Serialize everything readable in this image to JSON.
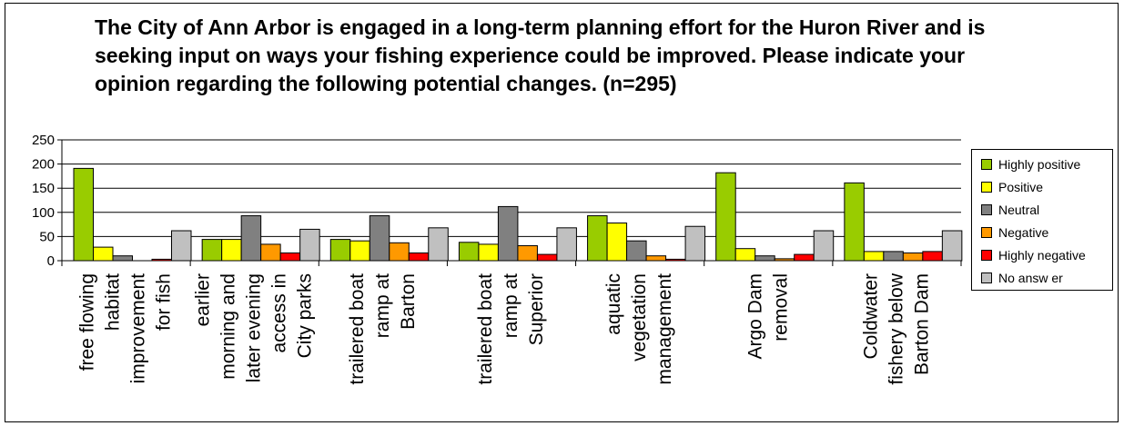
{
  "chart_data": {
    "type": "bar",
    "title": "The City of Ann Arbor is engaged in a long-term planning effort for the Huron River and is seeking input on ways your fishing experience could be improved. Please indicate your opinion regarding the following potential changes. (n=295)",
    "categories": [
      "free flowing habitat improvement for fish",
      "earlier morning and later evening access in City parks",
      "trailered boat ramp at Barton",
      "trailered boat ramp at Superior",
      "aquatic vegetation management",
      "Argo Dam removal",
      "Coldwater fishery below Barton Dam"
    ],
    "category_lines": [
      [
        "free flowing",
        "habitat",
        "improvement",
        "for fish"
      ],
      [
        "earlier",
        "morning and",
        "later evening",
        "access in",
        "City parks"
      ],
      [
        "trailered boat",
        "ramp at",
        "Barton"
      ],
      [
        "trailered boat",
        "ramp at",
        "Superior"
      ],
      [
        "aquatic",
        "vegetation",
        "management"
      ],
      [
        "Argo Dam",
        "removal"
      ],
      [
        "Coldwater",
        "fishery below",
        "Barton Dam"
      ]
    ],
    "series": [
      {
        "name": "Highly positive",
        "color": "#99CC00",
        "values": [
          191,
          44,
          44,
          38,
          93,
          182,
          161
        ]
      },
      {
        "name": "Positive",
        "color": "#FFFF00",
        "values": [
          28,
          44,
          41,
          34,
          78,
          25,
          19
        ]
      },
      {
        "name": "Neutral",
        "color": "#808080",
        "values": [
          10,
          93,
          93,
          112,
          41,
          10,
          19
        ]
      },
      {
        "name": "Negative",
        "color": "#FF9900",
        "values": [
          0,
          34,
          37,
          31,
          10,
          4,
          16
        ]
      },
      {
        "name": "Highly negative",
        "color": "#FF0000",
        "values": [
          3,
          16,
          16,
          13,
          3,
          13,
          19
        ]
      },
      {
        "name": "No answer",
        "color": "#C0C0C0",
        "values": [
          62,
          65,
          68,
          68,
          71,
          62,
          62
        ]
      }
    ],
    "legend_labels": [
      "Highly positive",
      "Positive",
      "Neutral",
      "Negative",
      "Highly negative",
      "No answ er"
    ],
    "y_ticks": [
      "0",
      "50",
      "100",
      "150",
      "200",
      "250"
    ],
    "ylim": [
      0,
      250
    ],
    "xlabel": "",
    "ylabel": "",
    "grid": true,
    "legend_position": "right"
  }
}
